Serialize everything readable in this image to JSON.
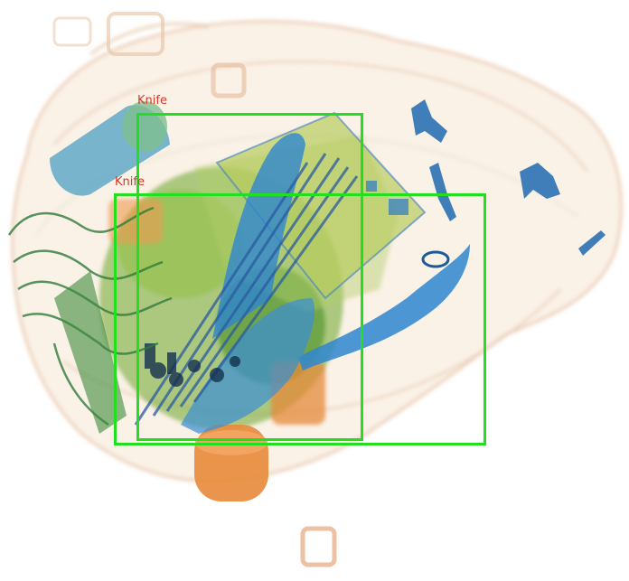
{
  "image": {
    "kind": "x-ray baggage scan with detection boxes",
    "colors": {
      "background": "#ffffff",
      "box": "#22e01f",
      "label": "#d23a2a",
      "organic_orange": "#e88a3a",
      "organic_green": "#6aa52a",
      "metal_blue": "#2b78c8"
    }
  },
  "detections": [
    {
      "label": "Knife"
    },
    {
      "label": "Knife"
    }
  ]
}
